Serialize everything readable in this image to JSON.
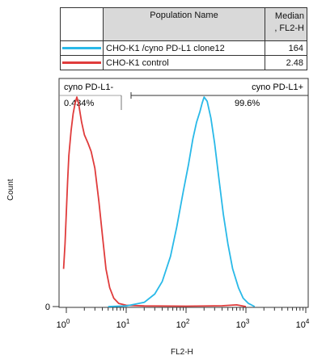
{
  "legend": {
    "header_name": "Population Name",
    "header_median_line1": "Median",
    "header_median_line2": ", FL2-H",
    "rows": [
      {
        "color": "#29b9e8",
        "name": "CHO-K1 /cyno PD-L1 clone12",
        "median": "164"
      },
      {
        "color": "#e03c3c",
        "name": "CHO-K1 control",
        "median": "2.48"
      }
    ]
  },
  "chart_data": {
    "type": "area",
    "xlabel": "FL2-H",
    "ylabel": "Count",
    "x_scale": "log",
    "xlim": [
      1,
      10000
    ],
    "x_ticks": [
      {
        "base": "10",
        "exp": "0"
      },
      {
        "base": "10",
        "exp": "1"
      },
      {
        "base": "10",
        "exp": "2"
      },
      {
        "base": "10",
        "exp": "3"
      },
      {
        "base": "10",
        "exp": "4"
      }
    ],
    "y_ticks": [
      "0"
    ],
    "gates": [
      {
        "label": "cyno PD-L1-",
        "percent": "0.434%",
        "range": [
          1,
          10
        ]
      },
      {
        "label": "cyno PD-L1+",
        "percent": "99.6%",
        "range": [
          10,
          10000
        ]
      }
    ],
    "series": [
      {
        "name": "CHO-K1 control",
        "color": "#e03c3c",
        "points": [
          [
            0.9,
            0.18
          ],
          [
            0.95,
            0.3
          ],
          [
            1.0,
            0.45
          ],
          [
            1.05,
            0.6
          ],
          [
            1.1,
            0.72
          ],
          [
            1.2,
            0.84
          ],
          [
            1.3,
            0.92
          ],
          [
            1.4,
            0.97
          ],
          [
            1.5,
            1.0
          ],
          [
            1.6,
            0.97
          ],
          [
            1.8,
            0.88
          ],
          [
            2.0,
            0.82
          ],
          [
            2.3,
            0.78
          ],
          [
            2.6,
            0.74
          ],
          [
            3.0,
            0.66
          ],
          [
            3.5,
            0.5
          ],
          [
            4.0,
            0.34
          ],
          [
            4.6,
            0.18
          ],
          [
            5.3,
            0.09
          ],
          [
            6.2,
            0.04
          ],
          [
            7.5,
            0.015
          ],
          [
            10,
            0.006
          ],
          [
            20,
            0.003
          ],
          [
            100,
            0.002
          ],
          [
            400,
            0.004
          ],
          [
            700,
            0.008
          ],
          [
            1000,
            0.0
          ]
        ]
      },
      {
        "name": "CHO-K1 /cyno PD-L1 clone12",
        "color": "#29b9e8",
        "points": [
          [
            5,
            0.0
          ],
          [
            10,
            0.003
          ],
          [
            20,
            0.02
          ],
          [
            30,
            0.06
          ],
          [
            40,
            0.12
          ],
          [
            55,
            0.24
          ],
          [
            70,
            0.38
          ],
          [
            90,
            0.55
          ],
          [
            110,
            0.68
          ],
          [
            130,
            0.8
          ],
          [
            150,
            0.88
          ],
          [
            170,
            0.93
          ],
          [
            185,
            0.97
          ],
          [
            200,
            1.0
          ],
          [
            225,
            0.98
          ],
          [
            260,
            0.9
          ],
          [
            300,
            0.78
          ],
          [
            350,
            0.62
          ],
          [
            420,
            0.44
          ],
          [
            500,
            0.3
          ],
          [
            600,
            0.18
          ],
          [
            750,
            0.09
          ],
          [
            900,
            0.04
          ],
          [
            1100,
            0.015
          ],
          [
            1400,
            0.0
          ]
        ]
      }
    ]
  }
}
